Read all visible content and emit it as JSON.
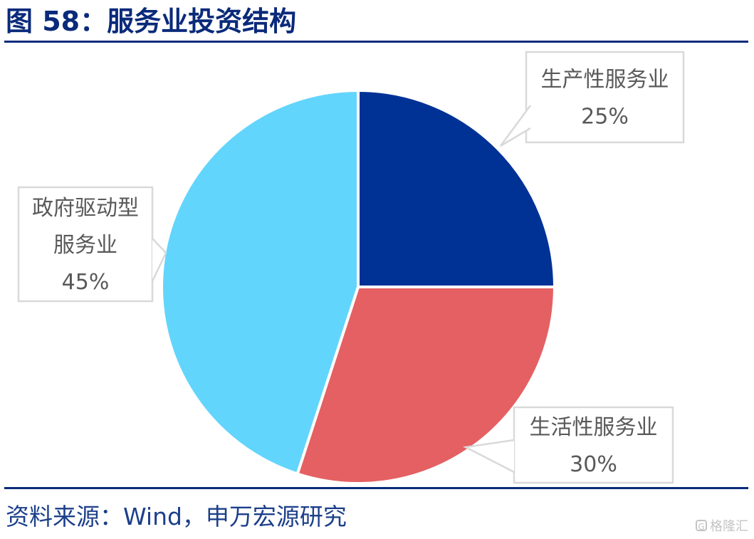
{
  "figure_title": "图 58：服务业投资结构",
  "source_note": "资料来源：Wind，申万宏源研究",
  "watermark": {
    "text": "格隆汇",
    "icon": "g-logo-icon"
  },
  "chart_data": {
    "type": "pie",
    "title": "",
    "start_angle_deg": 0,
    "direction": "clockwise",
    "slices": [
      {
        "label_lines": [
          "生产性服务业"
        ],
        "percent_label": "25%",
        "value": 25,
        "color": "#003296"
      },
      {
        "label_lines": [
          "生活性服务业"
        ],
        "percent_label": "30%",
        "value": 30,
        "color": "#e46062"
      },
      {
        "label_lines": [
          "政府驱动型",
          "服务业"
        ],
        "percent_label": "45%",
        "value": 45,
        "color": "#62d5fc"
      }
    ],
    "callout_style": {
      "border": "#d9d9d9",
      "fill": "#ffffff"
    }
  }
}
